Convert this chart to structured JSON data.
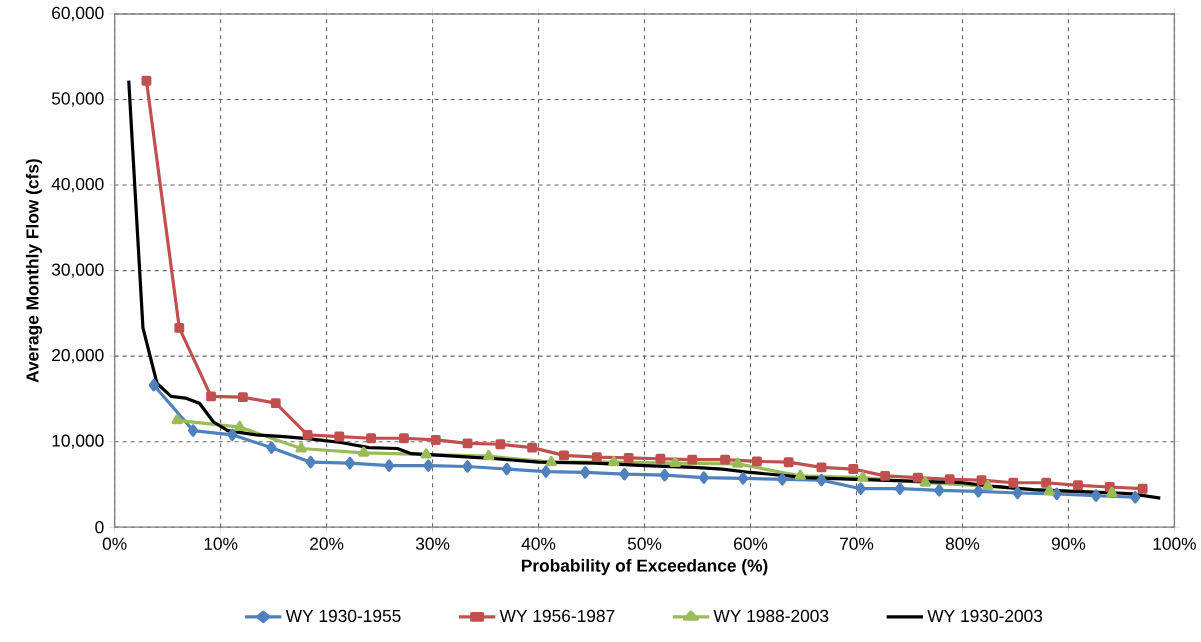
{
  "chart_data": {
    "type": "line",
    "xlabel": "Probability of Exceedance (%)",
    "ylabel": "Average Monthly Flow (cfs)",
    "xlim": [
      0,
      100
    ],
    "ylim": [
      0,
      60000
    ],
    "xticks": [
      {
        "value": 0,
        "label": "0%"
      },
      {
        "value": 10,
        "label": "10%"
      },
      {
        "value": 20,
        "label": "20%"
      },
      {
        "value": 30,
        "label": "30%"
      },
      {
        "value": 40,
        "label": "40%"
      },
      {
        "value": 50,
        "label": "50%"
      },
      {
        "value": 60,
        "label": "60%"
      },
      {
        "value": 70,
        "label": "70%"
      },
      {
        "value": 80,
        "label": "80%"
      },
      {
        "value": 90,
        "label": "90%"
      },
      {
        "value": 100,
        "label": "100%"
      }
    ],
    "yticks": [
      {
        "value": 0,
        "label": "0"
      },
      {
        "value": 10000,
        "label": "10,000"
      },
      {
        "value": 20000,
        "label": "20,000"
      },
      {
        "value": 30000,
        "label": "30,000"
      },
      {
        "value": 40000,
        "label": "40,000"
      },
      {
        "value": 50000,
        "label": "50,000"
      },
      {
        "value": 60000,
        "label": "60,000"
      }
    ],
    "grid": true,
    "legend": "bottom",
    "line_style": "solid",
    "series": [
      {
        "name": "WY 1930-1955",
        "color": "#4f81bd",
        "marker": "diamond",
        "x": [
          3.7,
          7.4,
          11.1,
          14.8,
          18.5,
          22.2,
          25.9,
          29.6,
          33.3,
          37.0,
          40.7,
          44.4,
          48.1,
          51.9,
          55.6,
          59.3,
          63.0,
          66.7,
          70.4,
          74.1,
          77.8,
          81.5,
          85.2,
          88.9,
          92.6,
          96.3
        ],
        "values": [
          16600,
          11300,
          10800,
          9300,
          7600,
          7500,
          7200,
          7200,
          7100,
          6800,
          6500,
          6400,
          6200,
          6100,
          5800,
          5700,
          5600,
          5500,
          4500,
          4500,
          4300,
          4200,
          4000,
          3900,
          3700,
          3500
        ]
      },
      {
        "name": "WY 1956-1987",
        "color": "#c0504d",
        "marker": "square",
        "x": [
          3.0,
          6.1,
          9.1,
          12.1,
          15.2,
          18.2,
          21.2,
          24.2,
          27.3,
          30.3,
          33.3,
          36.4,
          39.4,
          42.4,
          45.5,
          48.5,
          51.5,
          54.5,
          57.6,
          60.6,
          63.6,
          66.7,
          69.7,
          72.7,
          75.8,
          78.8,
          81.8,
          84.8,
          87.9,
          90.9,
          93.9,
          97.0
        ],
        "values": [
          52200,
          23300,
          15300,
          15200,
          14500,
          10800,
          10600,
          10400,
          10400,
          10200,
          9800,
          9700,
          9300,
          8400,
          8200,
          8100,
          8000,
          7900,
          7900,
          7700,
          7600,
          7000,
          6800,
          6000,
          5800,
          5600,
          5500,
          5200,
          5200,
          4900,
          4700,
          4500
        ]
      },
      {
        "name": "WY 1988-2003",
        "color": "#9bbb59",
        "marker": "triangle",
        "x": [
          5.9,
          11.8,
          17.6,
          23.5,
          29.4,
          35.3,
          41.2,
          47.1,
          52.9,
          58.8,
          64.7,
          70.6,
          76.5,
          82.4,
          88.2,
          94.1
        ],
        "values": [
          12500,
          11700,
          9200,
          8700,
          8500,
          8300,
          7600,
          7600,
          7500,
          7400,
          6000,
          5800,
          5200,
          4800,
          4200,
          4000
        ]
      },
      {
        "name": "WY 1930-2003",
        "color": "#000000",
        "marker": "none",
        "x": [
          1.33,
          2.67,
          4.0,
          5.33,
          6.67,
          8.0,
          9.33,
          10.67,
          13.33,
          16.0,
          18.67,
          21.33,
          24.0,
          26.67,
          28.0,
          32.0,
          36.0,
          40.0,
          45.33,
          50.0,
          54.67,
          57.33,
          60.0,
          65.33,
          70.0,
          77.33,
          80.0,
          82.67,
          86.67,
          90.67,
          94.67,
          96.0,
          98.67
        ],
        "values": [
          52200,
          23300,
          16800,
          15300,
          15100,
          14500,
          12300,
          11300,
          10800,
          10600,
          10300,
          9900,
          9300,
          9200,
          8600,
          8300,
          8000,
          7600,
          7500,
          7200,
          7000,
          6800,
          6400,
          5800,
          5600,
          5300,
          5200,
          4800,
          4400,
          4200,
          4000,
          3900,
          3400
        ]
      }
    ]
  }
}
